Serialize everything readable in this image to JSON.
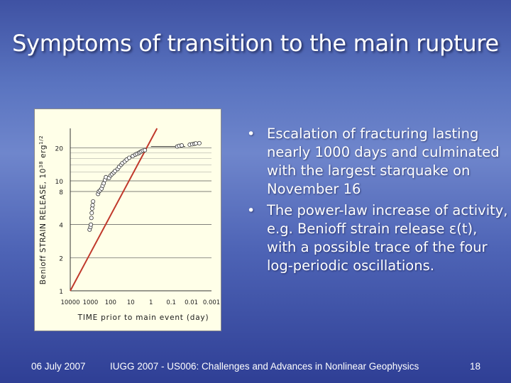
{
  "slide": {
    "title": "Symptoms of transition to the main rupture",
    "bullets": [
      {
        "text": "Escalation of fracturing lasting nearly 1000 days and culminated with the largest starquake on November 16"
      },
      {
        "text": "The power-law increase of activity, e.g. Benioff strain release ε(t), with a possible trace of the four log-periodic oscillations."
      }
    ],
    "bullet_symbol": "•",
    "footer": {
      "date": "06 July 2007",
      "event": "IUGG 2007 - US006:  Challenges and Advances in Nonlinear Geophysics",
      "page": "18"
    }
  },
  "colors": {
    "background_top": "#3f52a3",
    "background_bottom": "#2f3f95",
    "panel_background": "#ffffe8",
    "fit_line": "#c0392b",
    "points": "#ffffff",
    "text": "#ffffff"
  },
  "chart_data": {
    "type": "scatter",
    "xlabel": "TIME prior to main event (day)",
    "ylabel_main": "Benioff STRAIN RELEASE, 10",
    "ylabel_exp1": "38",
    "ylabel_unit": " erg",
    "ylabel_exp2": "1/2",
    "x_scale": "log",
    "x_reversed": true,
    "y_scale": "log",
    "xlim": [
      10000,
      0.001
    ],
    "ylim": [
      1,
      30
    ],
    "x_ticks": [
      10000,
      1000,
      100,
      10,
      1,
      0.1,
      0.01,
      0.001
    ],
    "x_tick_labels": [
      "10000",
      "1000",
      "100",
      "10",
      "1",
      "0.1",
      "0.01",
      "0.001"
    ],
    "y_ticks": [
      1,
      2,
      4,
      8,
      10,
      20
    ],
    "y_tick_labels": [
      "1",
      "2",
      "4",
      "8",
      "10",
      "20"
    ],
    "grid": "horizontal",
    "points": [
      {
        "x": 1100,
        "y": 3.6
      },
      {
        "x": 1000,
        "y": 3.8
      },
      {
        "x": 950,
        "y": 4.0
      },
      {
        "x": 900,
        "y": 4.6
      },
      {
        "x": 860,
        "y": 5.1
      },
      {
        "x": 820,
        "y": 5.6
      },
      {
        "x": 780,
        "y": 6.0
      },
      {
        "x": 740,
        "y": 6.5
      },
      {
        "x": 420,
        "y": 7.6
      },
      {
        "x": 380,
        "y": 8.0
      },
      {
        "x": 330,
        "y": 8.2
      },
      {
        "x": 280,
        "y": 8.5
      },
      {
        "x": 250,
        "y": 9.0
      },
      {
        "x": 220,
        "y": 9.5
      },
      {
        "x": 190,
        "y": 10.2
      },
      {
        "x": 170,
        "y": 10.8
      },
      {
        "x": 120,
        "y": 10.6
      },
      {
        "x": 100,
        "y": 11.2
      },
      {
        "x": 85,
        "y": 11.5
      },
      {
        "x": 70,
        "y": 11.9
      },
      {
        "x": 60,
        "y": 12.3
      },
      {
        "x": 45,
        "y": 12.8
      },
      {
        "x": 38,
        "y": 13.4
      },
      {
        "x": 30,
        "y": 14.0
      },
      {
        "x": 26,
        "y": 14.5
      },
      {
        "x": 20,
        "y": 15.0
      },
      {
        "x": 16,
        "y": 15.6
      },
      {
        "x": 12,
        "y": 16.2
      },
      {
        "x": 8,
        "y": 16.8
      },
      {
        "x": 6,
        "y": 17.3
      },
      {
        "x": 5,
        "y": 17.6
      },
      {
        "x": 4,
        "y": 17.9
      },
      {
        "x": 3.5,
        "y": 18.2
      },
      {
        "x": 3,
        "y": 18.5
      },
      {
        "x": 2.5,
        "y": 18.8
      },
      {
        "x": 2,
        "y": 19.0
      },
      {
        "x": 0.05,
        "y": 20.5
      },
      {
        "x": 0.04,
        "y": 20.8
      },
      {
        "x": 0.03,
        "y": 21.0
      },
      {
        "x": 0.012,
        "y": 21.3
      },
      {
        "x": 0.009,
        "y": 21.5
      },
      {
        "x": 0.007,
        "y": 21.7
      },
      {
        "x": 0.006,
        "y": 21.9
      },
      {
        "x": 0.004,
        "y": 22.0
      }
    ],
    "fit_line": {
      "from": {
        "x": 10000,
        "y": 1.0
      },
      "to": {
        "x": 0.5,
        "y": 30
      }
    },
    "plateau_line": {
      "y": 20.5,
      "from_x": 1,
      "to_x": 0.02
    }
  }
}
